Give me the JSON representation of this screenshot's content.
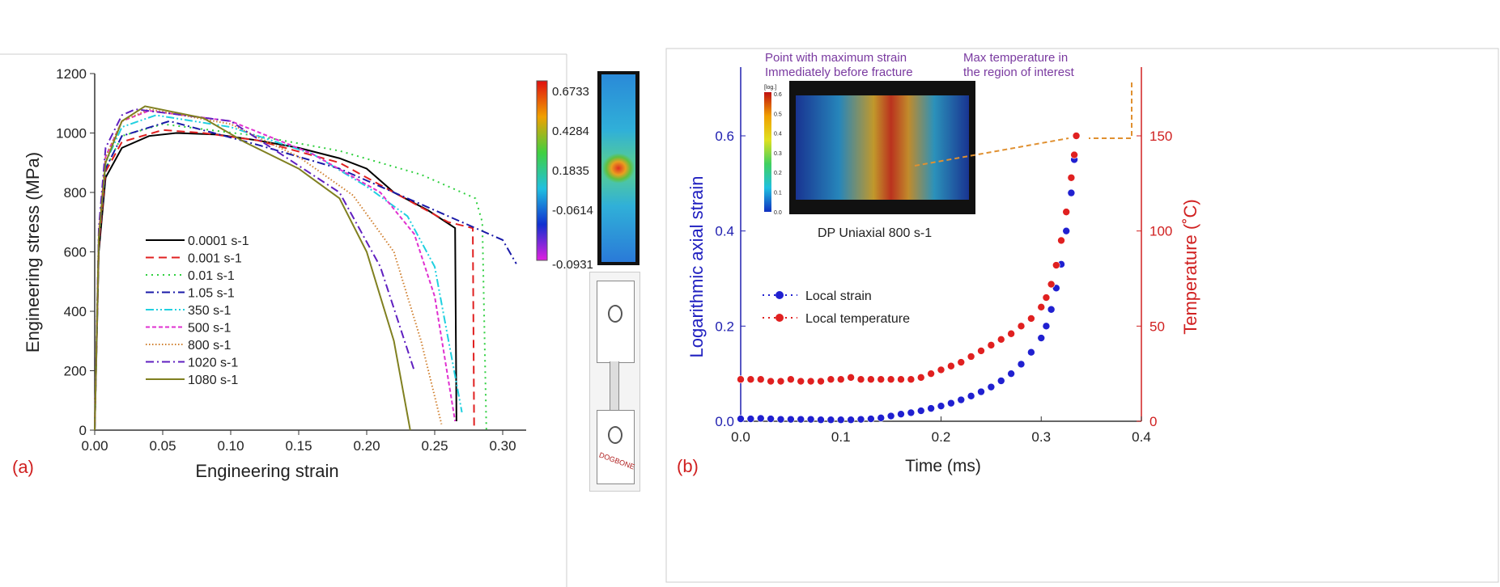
{
  "chart_data": [
    {
      "type": "line",
      "panel_label": "(a)",
      "xlabel": "Engineering strain",
      "ylabel": "Engineering stress (MPa)",
      "xlim": [
        0,
        0.32
      ],
      "ylim": [
        0,
        1200
      ],
      "xticks": [
        "0.00",
        "0.05",
        "0.10",
        "0.15",
        "0.20",
        "0.25",
        "0.30"
      ],
      "yticks": [
        "0",
        "200",
        "400",
        "600",
        "800",
        "1000",
        "1200"
      ],
      "grid": false,
      "legend_position": "center-left",
      "series": [
        {
          "name": "0.0001 s-1",
          "color": "#000000",
          "dash": "solid",
          "points": [
            [
              0,
              0
            ],
            [
              0.003,
              600
            ],
            [
              0.008,
              850
            ],
            [
              0.02,
              950
            ],
            [
              0.04,
              990
            ],
            [
              0.06,
              1000
            ],
            [
              0.09,
              995
            ],
            [
              0.12,
              975
            ],
            [
              0.15,
              950
            ],
            [
              0.18,
              915
            ],
            [
              0.2,
              880
            ],
            [
              0.22,
              800
            ],
            [
              0.245,
              740
            ],
            [
              0.265,
              680
            ],
            [
              0.266,
              30
            ]
          ]
        },
        {
          "name": "0.001 s-1",
          "color": "#e02020",
          "dash": "dashed",
          "points": [
            [
              0,
              0
            ],
            [
              0.003,
              620
            ],
            [
              0.008,
              870
            ],
            [
              0.02,
              970
            ],
            [
              0.05,
              1010
            ],
            [
              0.08,
              1000
            ],
            [
              0.12,
              975
            ],
            [
              0.18,
              900
            ],
            [
              0.22,
              800
            ],
            [
              0.26,
              700
            ],
            [
              0.278,
              680
            ],
            [
              0.279,
              0
            ]
          ]
        },
        {
          "name": "0.01 s-1",
          "color": "#30d040",
          "dash": "dotted",
          "points": [
            [
              0,
              0
            ],
            [
              0.003,
              640
            ],
            [
              0.008,
              880
            ],
            [
              0.02,
              990
            ],
            [
              0.05,
              1030
            ],
            [
              0.12,
              990
            ],
            [
              0.18,
              940
            ],
            [
              0.24,
              860
            ],
            [
              0.28,
              780
            ],
            [
              0.285,
              700
            ],
            [
              0.288,
              0
            ]
          ]
        },
        {
          "name": "1.05 s-1",
          "color": "#1a1aa8",
          "dash": "dashdot",
          "points": [
            [
              0,
              0
            ],
            [
              0.003,
              640
            ],
            [
              0.008,
              880
            ],
            [
              0.02,
              990
            ],
            [
              0.055,
              1040
            ],
            [
              0.12,
              960
            ],
            [
              0.18,
              880
            ],
            [
              0.22,
              800
            ],
            [
              0.26,
              720
            ],
            [
              0.3,
              640
            ],
            [
              0.31,
              560
            ]
          ]
        },
        {
          "name": "350 s-1",
          "color": "#20d0e0",
          "dash": "dashdotdot",
          "points": [
            [
              0,
              0
            ],
            [
              0.003,
              650
            ],
            [
              0.008,
              900
            ],
            [
              0.02,
              1020
            ],
            [
              0.045,
              1060
            ],
            [
              0.1,
              1020
            ],
            [
              0.16,
              930
            ],
            [
              0.2,
              820
            ],
            [
              0.23,
              720
            ],
            [
              0.25,
              550
            ],
            [
              0.27,
              60
            ]
          ]
        },
        {
          "name": "500 s-1",
          "color": "#e030d0",
          "dash": "shortdash",
          "points": [
            [
              0,
              0
            ],
            [
              0.003,
              660
            ],
            [
              0.008,
              920
            ],
            [
              0.02,
              1040
            ],
            [
              0.04,
              1075
            ],
            [
              0.1,
              1040
            ],
            [
              0.16,
              930
            ],
            [
              0.21,
              800
            ],
            [
              0.235,
              660
            ],
            [
              0.25,
              450
            ],
            [
              0.265,
              30
            ]
          ]
        },
        {
          "name": "800 s-1",
          "color": "#d08030",
          "dash": "shortdot",
          "points": [
            [
              0,
              0
            ],
            [
              0.003,
              660
            ],
            [
              0.008,
              920
            ],
            [
              0.02,
              1040
            ],
            [
              0.04,
              1080
            ],
            [
              0.1,
              1030
            ],
            [
              0.15,
              920
            ],
            [
              0.19,
              790
            ],
            [
              0.22,
              600
            ],
            [
              0.24,
              300
            ],
            [
              0.255,
              20
            ]
          ]
        },
        {
          "name": "1020 s-1",
          "color": "#6020c0",
          "dash": "dashdot",
          "points": [
            [
              0,
              0
            ],
            [
              0.003,
              680
            ],
            [
              0.008,
              950
            ],
            [
              0.02,
              1060
            ],
            [
              0.03,
              1080
            ],
            [
              0.1,
              1040
            ],
            [
              0.14,
              920
            ],
            [
              0.18,
              800
            ],
            [
              0.21,
              550
            ],
            [
              0.235,
              200
            ]
          ]
        },
        {
          "name": "1080 s-1",
          "color": "#808020",
          "dash": "solid",
          "points": [
            [
              0,
              0
            ],
            [
              0.003,
              650
            ],
            [
              0.008,
              900
            ],
            [
              0.02,
              1040
            ],
            [
              0.037,
              1090
            ],
            [
              0.08,
              1050
            ],
            [
              0.11,
              970
            ],
            [
              0.15,
              880
            ],
            [
              0.18,
              780
            ],
            [
              0.2,
              600
            ],
            [
              0.22,
              300
            ],
            [
              0.232,
              0
            ]
          ]
        }
      ],
      "colorbar": {
        "labels": [
          "0.6733",
          "0.4284",
          "0.1835",
          "-0.0614",
          "-0.0931"
        ]
      },
      "dogbone_label": "DOGBONE"
    },
    {
      "type": "scatter",
      "panel_label": "(b)",
      "xlabel": "Time (ms)",
      "ylabel": "Logarithmic axial strain",
      "y2label": "Temperature (˚C)",
      "xlim": [
        0,
        0.4
      ],
      "ylim": [
        0,
        0.7
      ],
      "y2lim": [
        0,
        175
      ],
      "xticks": [
        "0.0",
        "0.1",
        "0.2",
        "0.3",
        "0.4"
      ],
      "yticks": [
        "0.0",
        "0.2",
        "0.4",
        "0.6"
      ],
      "y2ticks": [
        "0",
        "50",
        "100",
        "150"
      ],
      "grid": false,
      "legend_position": "center-left",
      "annotations": [
        "Point with maximum strain",
        "Immediately before fracture",
        "Max temperature in",
        "the region of interest",
        "DP Uniaxial 800 s-1"
      ],
      "inset_colorbar": {
        "title": "[log.]",
        "labels": [
          "0.6",
          "0.5",
          "0.4",
          "0.3",
          "0.2",
          "0.1",
          "0.0"
        ]
      },
      "series": [
        {
          "name": "Local strain",
          "axis": "left",
          "color": "#2020d0",
          "points": [
            [
              0,
              0.005
            ],
            [
              0.01,
              0.005
            ],
            [
              0.02,
              0.006
            ],
            [
              0.03,
              0.005
            ],
            [
              0.04,
              0.004
            ],
            [
              0.05,
              0.004
            ],
            [
              0.06,
              0.004
            ],
            [
              0.07,
              0.004
            ],
            [
              0.08,
              0.003
            ],
            [
              0.09,
              0.003
            ],
            [
              0.1,
              0.003
            ],
            [
              0.11,
              0.003
            ],
            [
              0.12,
              0.004
            ],
            [
              0.13,
              0.005
            ],
            [
              0.14,
              0.007
            ],
            [
              0.15,
              0.011
            ],
            [
              0.16,
              0.015
            ],
            [
              0.17,
              0.018
            ],
            [
              0.18,
              0.022
            ],
            [
              0.19,
              0.027
            ],
            [
              0.2,
              0.032
            ],
            [
              0.21,
              0.038
            ],
            [
              0.22,
              0.045
            ],
            [
              0.23,
              0.053
            ],
            [
              0.24,
              0.062
            ],
            [
              0.25,
              0.072
            ],
            [
              0.26,
              0.085
            ],
            [
              0.27,
              0.1
            ],
            [
              0.28,
              0.12
            ],
            [
              0.29,
              0.145
            ],
            [
              0.3,
              0.175
            ],
            [
              0.305,
              0.2
            ],
            [
              0.31,
              0.235
            ],
            [
              0.315,
              0.28
            ],
            [
              0.32,
              0.33
            ],
            [
              0.325,
              0.4
            ],
            [
              0.33,
              0.48
            ],
            [
              0.333,
              0.55
            ],
            [
              0.335,
              0.6
            ]
          ]
        },
        {
          "name": "Local temperature",
          "axis": "right",
          "color": "#e02020",
          "points": [
            [
              0,
              22
            ],
            [
              0.01,
              22
            ],
            [
              0.02,
              22
            ],
            [
              0.03,
              21
            ],
            [
              0.04,
              21
            ],
            [
              0.05,
              22
            ],
            [
              0.06,
              21
            ],
            [
              0.07,
              21
            ],
            [
              0.08,
              21
            ],
            [
              0.09,
              22
            ],
            [
              0.1,
              22
            ],
            [
              0.11,
              23
            ],
            [
              0.12,
              22
            ],
            [
              0.13,
              22
            ],
            [
              0.14,
              22
            ],
            [
              0.15,
              22
            ],
            [
              0.16,
              22
            ],
            [
              0.17,
              22
            ],
            [
              0.18,
              23
            ],
            [
              0.19,
              25
            ],
            [
              0.2,
              27
            ],
            [
              0.21,
              29
            ],
            [
              0.22,
              31
            ],
            [
              0.23,
              34
            ],
            [
              0.24,
              37
            ],
            [
              0.25,
              40
            ],
            [
              0.26,
              43
            ],
            [
              0.27,
              46
            ],
            [
              0.28,
              50
            ],
            [
              0.29,
              54
            ],
            [
              0.3,
              60
            ],
            [
              0.305,
              65
            ],
            [
              0.31,
              72
            ],
            [
              0.315,
              82
            ],
            [
              0.32,
              95
            ],
            [
              0.325,
              110
            ],
            [
              0.33,
              128
            ],
            [
              0.333,
              140
            ],
            [
              0.335,
              150
            ]
          ]
        }
      ]
    }
  ]
}
